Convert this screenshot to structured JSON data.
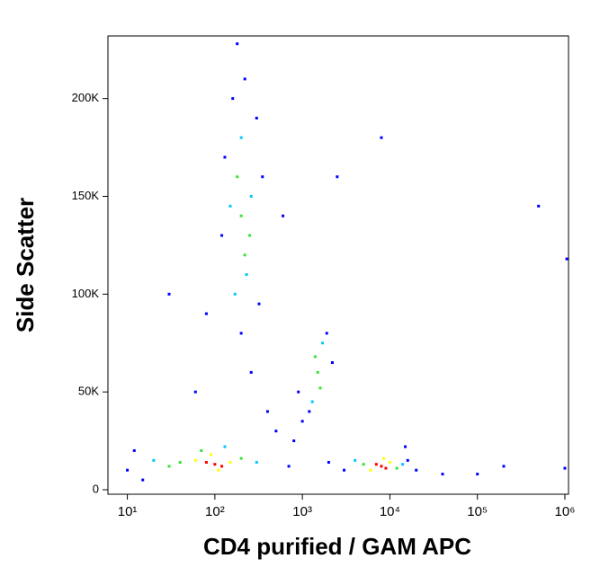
{
  "chart_data": {
    "type": "scatter",
    "xlabel": "CD4 purified / GAM APC",
    "ylabel": "Side Scatter",
    "xscale": "log",
    "xlim": [
      6,
      1100000
    ],
    "ylim": [
      -2300,
      232000
    ],
    "xticks": [
      {
        "value": 10,
        "label": "10¹"
      },
      {
        "value": 100,
        "label": "10²"
      },
      {
        "value": 1000,
        "label": "10³"
      },
      {
        "value": 10000,
        "label": "10⁴"
      },
      {
        "value": 100000,
        "label": "10⁵"
      },
      {
        "value": 1000000,
        "label": "10⁶"
      }
    ],
    "yticks": [
      0,
      {
        "value": 50000,
        "label": "50K"
      },
      {
        "value": 100000,
        "label": "100K"
      },
      {
        "value": 150000,
        "label": "150K"
      },
      {
        "value": 200000,
        "label": "200K"
      }
    ],
    "series": [
      {
        "color": "#0000ff",
        "x": [
          220,
          160,
          300,
          130,
          350,
          120,
          320,
          200,
          260,
          400,
          500,
          800,
          1000,
          1200,
          1900,
          2200,
          900,
          10,
          12,
          15,
          700,
          2000,
          3000,
          16000,
          20000,
          60,
          80,
          30,
          180,
          2500,
          8000,
          200000,
          1000000,
          500000,
          1050000,
          100000,
          40000,
          15000,
          600
        ],
        "y": [
          210000,
          200000,
          190000,
          170000,
          160000,
          130000,
          95000,
          80000,
          60000,
          40000,
          30000,
          25000,
          35000,
          40000,
          80000,
          65000,
          50000,
          10000,
          20000,
          5000,
          12000,
          14000,
          10000,
          15000,
          10000,
          50000,
          90000,
          100000,
          228000,
          160000,
          180000,
          12000,
          11000,
          145000,
          118000,
          8000,
          8000,
          22000,
          140000
        ]
      },
      {
        "color": "#00c8ff",
        "x": [
          200,
          170,
          260,
          230,
          150,
          1300,
          1700,
          300,
          20,
          130,
          4000,
          14000
        ],
        "y": [
          180000,
          100000,
          150000,
          110000,
          145000,
          45000,
          75000,
          14000,
          15000,
          22000,
          15000,
          13000
        ]
      },
      {
        "color": "#32e632",
        "x": [
          200,
          220,
          180,
          250,
          1500,
          1400,
          1600,
          40,
          200,
          70,
          5000,
          12000,
          30
        ],
        "y": [
          140000,
          120000,
          160000,
          130000,
          60000,
          68000,
          52000,
          14000,
          16000,
          20000,
          13000,
          11000,
          12000
        ]
      },
      {
        "color": "#ffff00",
        "x": [
          60,
          150,
          90,
          110,
          10000,
          6000,
          8500
        ],
        "y": [
          15000,
          14000,
          18000,
          10000,
          14000,
          10000,
          16000
        ]
      },
      {
        "color": "#ff0000",
        "x": [
          100,
          80,
          120,
          8000,
          9000,
          7000
        ],
        "y": [
          13000,
          14000,
          12000,
          12000,
          11000,
          13000
        ]
      }
    ]
  }
}
